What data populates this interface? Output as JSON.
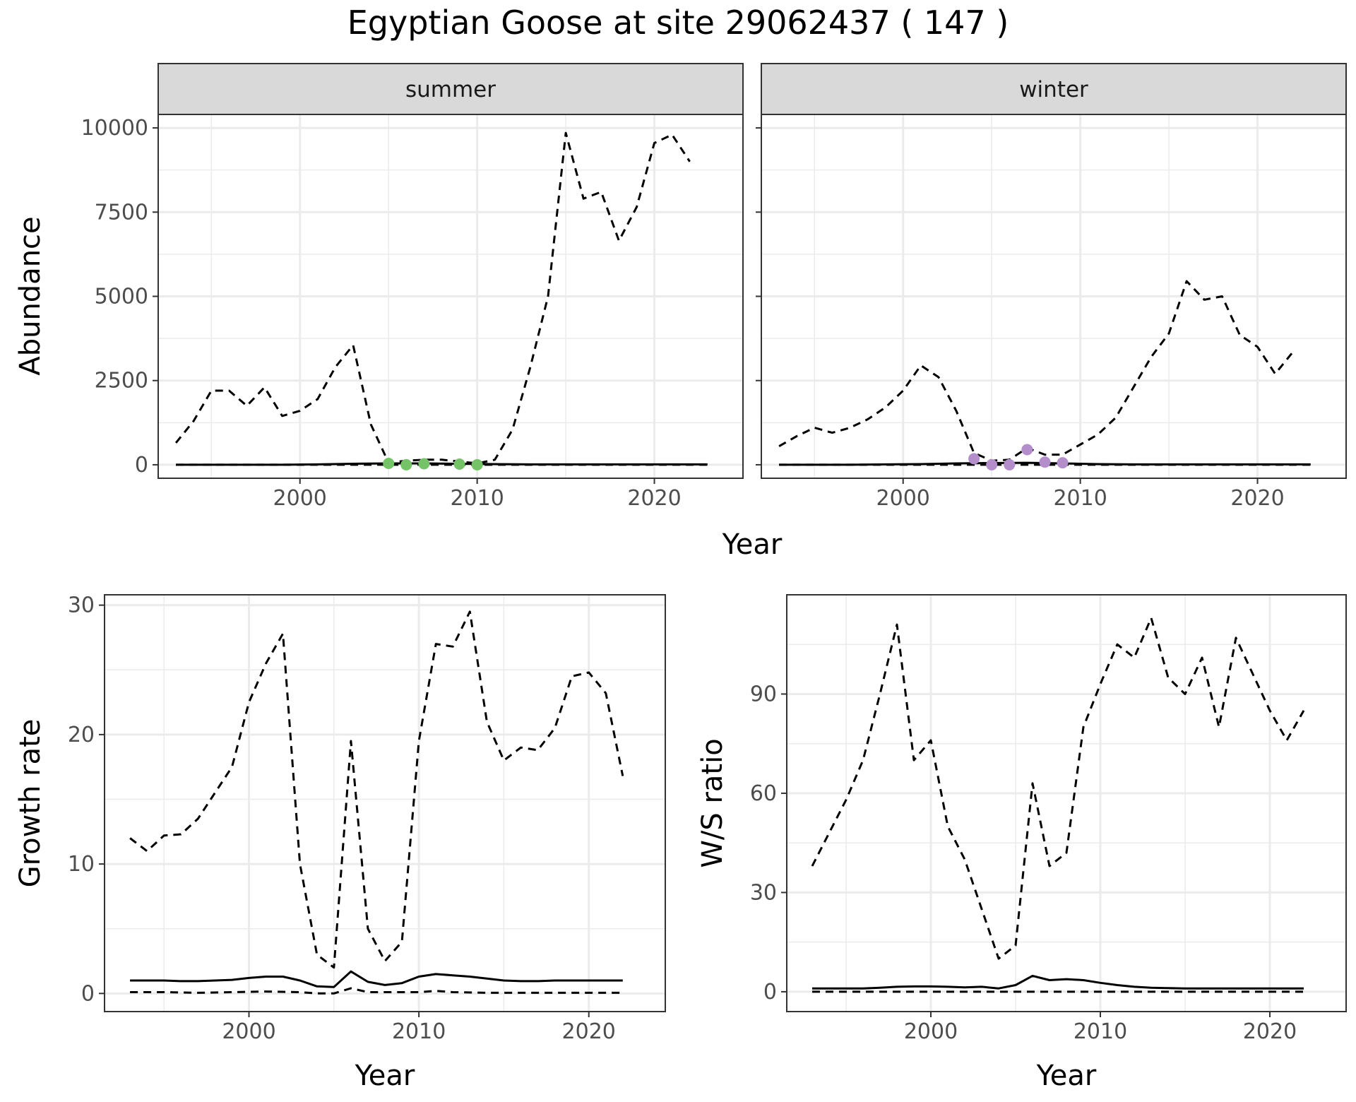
{
  "title": "Egyptian Goose at site 29062437 ( 147 )",
  "colors": {
    "summer_points": "#74c366",
    "winter_points": "#b38ecb",
    "strip_fill": "#d9d9d9",
    "grid": "#ebebeb",
    "line": "#000000"
  },
  "chart_data": [
    {
      "id": "abundance",
      "type": "line",
      "ylabel": "Abundance",
      "xlabel": "Year",
      "xlim": [
        1992,
        2025
      ],
      "ylim": [
        -400,
        10400
      ],
      "xticks": [
        2000,
        2010,
        2020
      ],
      "yticks": [
        0,
        2500,
        5000,
        7500,
        10000
      ],
      "facets": [
        {
          "name": "summer",
          "point_color_key": "summer_points",
          "series": [
            {
              "name": "dashed",
              "style": "dashed",
              "x": [
                1993,
                1994,
                1995,
                1996,
                1997,
                1998,
                1999,
                2000,
                2001,
                2002,
                2003,
                2004,
                2005,
                2006,
                2007,
                2008,
                2009,
                2010,
                2011,
                2012,
                2013,
                2014,
                2015,
                2016,
                2017,
                2018,
                2019,
                2020,
                2021,
                2022
              ],
              "y": [
                650,
                1300,
                2200,
                2200,
                1750,
                2300,
                1450,
                1600,
                1950,
                2900,
                3550,
                1200,
                60,
                120,
                150,
                150,
                100,
                40,
                150,
                1050,
                2900,
                5000,
                9850,
                7900,
                8100,
                6650,
                7650,
                9550,
                9800,
                9000
              ]
            },
            {
              "name": "solid",
              "style": "solid",
              "x": [
                1993,
                1995,
                1997,
                1999,
                2001,
                2003,
                2005,
                2007,
                2009,
                2011,
                2013,
                2015,
                2017,
                2019,
                2021,
                2023
              ],
              "y": [
                0,
                0,
                0,
                0,
                10,
                30,
                40,
                40,
                30,
                20,
                10,
                10,
                10,
                10,
                10,
                10
              ]
            },
            {
              "name": "flat dashed",
              "style": "dashed",
              "x": [
                1993,
                2023
              ],
              "y": [
                0,
                0
              ]
            }
          ],
          "points": {
            "x": [
              2005,
              2006,
              2007,
              2009,
              2010
            ],
            "y": [
              40,
              0,
              30,
              20,
              0
            ]
          }
        },
        {
          "name": "winter",
          "point_color_key": "winter_points",
          "series": [
            {
              "name": "dashed",
              "style": "dashed",
              "x": [
                1993,
                1994,
                1995,
                1996,
                1997,
                1998,
                1999,
                2000,
                2001,
                2002,
                2003,
                2004,
                2005,
                2006,
                2007,
                2008,
                2009,
                2010,
                2011,
                2012,
                2013,
                2014,
                2015,
                2016,
                2017,
                2018,
                2019,
                2020,
                2021,
                2022
              ],
              "y": [
                550,
                850,
                1100,
                950,
                1100,
                1350,
                1700,
                2200,
                2950,
                2600,
                1600,
                350,
                120,
                150,
                500,
                300,
                300,
                600,
                900,
                1400,
                2300,
                3200,
                3900,
                5450,
                4900,
                5000,
                3850,
                3500,
                2700,
                3350
              ]
            },
            {
              "name": "solid",
              "style": "solid",
              "x": [
                1993,
                1995,
                1997,
                1999,
                2001,
                2003,
                2005,
                2007,
                2009,
                2011,
                2013,
                2015,
                2017,
                2019,
                2021,
                2023
              ],
              "y": [
                0,
                0,
                0,
                10,
                20,
                40,
                50,
                60,
                40,
                20,
                10,
                10,
                10,
                10,
                10,
                10
              ]
            },
            {
              "name": "flat dashed",
              "style": "dashed",
              "x": [
                1993,
                2023
              ],
              "y": [
                0,
                0
              ]
            }
          ],
          "points": {
            "x": [
              2004,
              2005,
              2006,
              2007,
              2008,
              2009
            ],
            "y": [
              180,
              0,
              0,
              450,
              80,
              60
            ]
          }
        }
      ]
    },
    {
      "id": "growth",
      "type": "line",
      "ylabel": "Growth rate",
      "xlabel": "Year",
      "xlim": [
        1991.5,
        2024.5
      ],
      "ylim": [
        -1.4,
        30.8
      ],
      "xticks": [
        2000,
        2010,
        2020
      ],
      "yticks": [
        0,
        10,
        20,
        30
      ],
      "series": [
        {
          "name": "upper dashed",
          "style": "dashed",
          "x": [
            1993,
            1994,
            1995,
            1996,
            1997,
            1998,
            1999,
            2000,
            2001,
            2002,
            2003,
            2004,
            2005,
            2006,
            2007,
            2008,
            2009,
            2010,
            2011,
            2012,
            2013,
            2014,
            2015,
            2016,
            2017,
            2018,
            2019,
            2020,
            2021,
            2022
          ],
          "y": [
            12,
            11,
            12.2,
            12.3,
            13.5,
            15.5,
            17.5,
            22.5,
            25.5,
            27.8,
            10,
            3,
            2,
            19.5,
            5,
            2.5,
            4,
            19.5,
            27,
            26.8,
            29.5,
            21,
            18,
            19,
            18.8,
            20.5,
            24.5,
            24.8,
            23.2,
            16.8
          ]
        },
        {
          "name": "solid",
          "style": "solid",
          "x": [
            1993,
            1994,
            1995,
            1996,
            1997,
            1998,
            1999,
            2000,
            2001,
            2002,
            2003,
            2004,
            2005,
            2006,
            2007,
            2008,
            2009,
            2010,
            2011,
            2012,
            2013,
            2014,
            2015,
            2016,
            2017,
            2018,
            2019,
            2020,
            2021,
            2022
          ],
          "y": [
            1,
            1,
            1,
            0.95,
            0.95,
            1,
            1.05,
            1.2,
            1.3,
            1.3,
            1,
            0.55,
            0.5,
            1.7,
            0.9,
            0.65,
            0.8,
            1.3,
            1.5,
            1.4,
            1.3,
            1.15,
            1,
            0.95,
            0.95,
            1,
            1,
            1,
            1,
            1
          ]
        },
        {
          "name": "lower dashed",
          "style": "dashed",
          "x": [
            1993,
            1995,
            1997,
            1999,
            2001,
            2003,
            2004,
            2005,
            2006,
            2007,
            2008,
            2009,
            2010,
            2011,
            2012,
            2014,
            2016,
            2018,
            2020,
            2022
          ],
          "y": [
            0.1,
            0.1,
            0.05,
            0.1,
            0.15,
            0.1,
            0,
            0,
            0.4,
            0.1,
            0.1,
            0.1,
            0.1,
            0.2,
            0.1,
            0.05,
            0.05,
            0.05,
            0.05,
            0.05
          ]
        }
      ]
    },
    {
      "id": "ws_ratio",
      "type": "line",
      "ylabel": "W/S ratio",
      "xlabel": "Year",
      "xlim": [
        1991.5,
        2024.5
      ],
      "ylim": [
        -6,
        120
      ],
      "xticks": [
        2000,
        2010,
        2020
      ],
      "yticks": [
        0,
        30,
        60,
        90
      ],
      "series": [
        {
          "name": "upper dashed",
          "style": "dashed",
          "x": [
            1993,
            1994,
            1995,
            1996,
            1997,
            1998,
            1999,
            2000,
            2001,
            2002,
            2003,
            2004,
            2005,
            2006,
            2007,
            2008,
            2009,
            2010,
            2011,
            2012,
            2013,
            2014,
            2015,
            2016,
            2017,
            2018,
            2019,
            2020,
            2021,
            2022
          ],
          "y": [
            38,
            48,
            58,
            70,
            90,
            111,
            70,
            76,
            50,
            40,
            25,
            10,
            14,
            63,
            38,
            42,
            80,
            93,
            105,
            101,
            113,
            95,
            90,
            101,
            80,
            107,
            96,
            85,
            76,
            85
          ]
        },
        {
          "name": "solid",
          "style": "solid",
          "x": [
            1993,
            1994,
            1995,
            1996,
            1997,
            1998,
            1999,
            2000,
            2001,
            2002,
            2003,
            2004,
            2005,
            2006,
            2007,
            2008,
            2009,
            2010,
            2011,
            2012,
            2013,
            2014,
            2015,
            2016,
            2017,
            2018,
            2019,
            2020,
            2021,
            2022
          ],
          "y": [
            1,
            1,
            1,
            1,
            1.2,
            1.5,
            1.6,
            1.6,
            1.5,
            1.3,
            1.5,
            1,
            2,
            4.8,
            3.5,
            3.8,
            3.5,
            2.7,
            2,
            1.5,
            1.2,
            1.1,
            1,
            1,
            1,
            1,
            1,
            1,
            1,
            1
          ]
        },
        {
          "name": "lower dashed",
          "style": "dashed",
          "x": [
            1993,
            2022
          ],
          "y": [
            0,
            0
          ]
        }
      ]
    }
  ]
}
